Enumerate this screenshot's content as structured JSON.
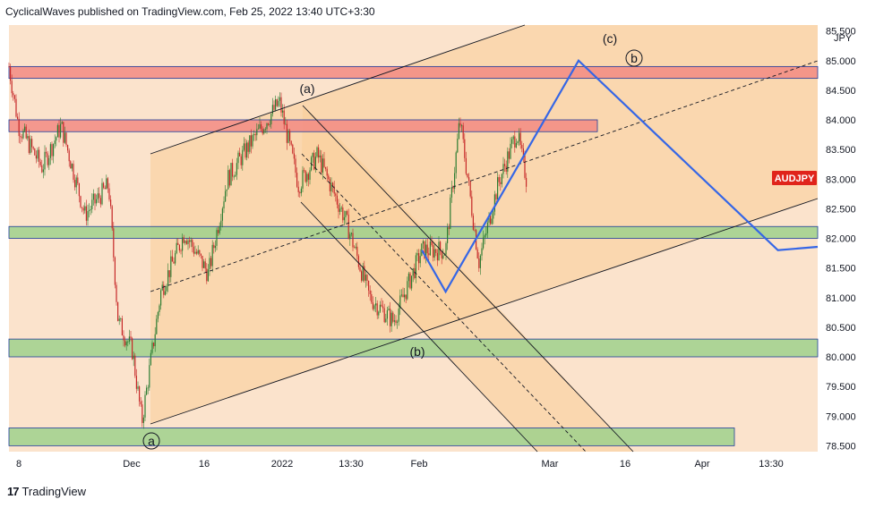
{
  "header": {
    "publisher_line": "CyclicalWaves published on TradingView.com, Feb 25, 2022 13:40 UTC+3:30"
  },
  "footer": {
    "brand": "TradingView"
  },
  "colors": {
    "background": "#fbe3cc",
    "channel_fill": "#f9cd98",
    "resistance_zone": "#f28b82",
    "support_zone": "#9fd18c",
    "zone_border": "#1e3c9c",
    "projection": "#3566e6",
    "bull_candle": "#2e7d32",
    "bear_candle": "#c62828",
    "tag_bg": "#e0241b"
  },
  "chart_data": {
    "type": "line",
    "symbol_tag": "AUDJPY",
    "currency": "JPY",
    "y_ticks": [
      "85.500",
      "85.000",
      "84.500",
      "84.000",
      "83.500",
      "83.000",
      "82.500",
      "82.000",
      "81.500",
      "81.000",
      "80.500",
      "80.000",
      "79.500",
      "79.000",
      "78.500"
    ],
    "ylim": [
      78.4,
      85.6
    ],
    "x_ticks": [
      "8",
      "Dec",
      "16",
      "2022",
      "13:30",
      "Feb",
      "Mar",
      "16",
      "Apr",
      "13:30"
    ],
    "price_path": [
      {
        "t": "Nov 8",
        "y": 84.9
      },
      {
        "t": "Nov 10",
        "y": 83.9
      },
      {
        "t": "Nov 15",
        "y": 83.2
      },
      {
        "t": "Nov 19",
        "y": 83.9
      },
      {
        "t": "Nov 24",
        "y": 82.4
      },
      {
        "t": "Nov 29",
        "y": 82.9
      },
      {
        "t": "Dec 1",
        "y": 80.6
      },
      {
        "t": "Dec 4",
        "y": 80.1
      },
      {
        "t": "Dec 6",
        "y": 78.9
      },
      {
        "t": "Dec 10",
        "y": 81.1
      },
      {
        "t": "Dec 15",
        "y": 82.1
      },
      {
        "t": "Dec 20",
        "y": 81.4
      },
      {
        "t": "Dec 24",
        "y": 83.0
      },
      {
        "t": "Dec 28",
        "y": 83.5
      },
      {
        "t": "Jan 4",
        "y": 84.3
      },
      {
        "t": "Jan 8",
        "y": 82.9
      },
      {
        "t": "Jan 12",
        "y": 83.4
      },
      {
        "t": "Jan 18",
        "y": 82.3
      },
      {
        "t": "Jan 23",
        "y": 81.0
      },
      {
        "t": "Jan 28",
        "y": 80.6
      },
      {
        "t": "Feb 3",
        "y": 81.8
      },
      {
        "t": "Feb 8",
        "y": 81.8
      },
      {
        "t": "Feb 11",
        "y": 84.0
      },
      {
        "t": "Feb 15",
        "y": 81.6
      },
      {
        "t": "Feb 19",
        "y": 82.9
      },
      {
        "t": "Feb 23",
        "y": 83.8
      },
      {
        "t": "Feb 25",
        "y": 83.0
      }
    ],
    "projection": [
      {
        "t": "Feb 3",
        "y": 81.8
      },
      {
        "t": "Feb 8",
        "y": 81.1
      },
      {
        "t": "Mar 8",
        "y": 85.0
      },
      {
        "t": "Apr 19",
        "y": 81.8
      }
    ],
    "zones": [
      {
        "kind": "resistance",
        "from": 84.9,
        "to": 84.7
      },
      {
        "kind": "resistance",
        "from": 84.0,
        "to": 83.8
      },
      {
        "kind": "support",
        "from": 82.2,
        "to": 82.0
      },
      {
        "kind": "support",
        "from": 80.3,
        "to": 80.0
      },
      {
        "kind": "support",
        "from": 78.8,
        "to": 78.5
      }
    ],
    "wave_labels": [
      {
        "text": "(a)",
        "circled": false
      },
      {
        "text": "(b)",
        "circled": false
      },
      {
        "text": "(c)",
        "circled": false
      },
      {
        "text": "a",
        "circled": true
      },
      {
        "text": "b",
        "circled": true
      }
    ]
  }
}
